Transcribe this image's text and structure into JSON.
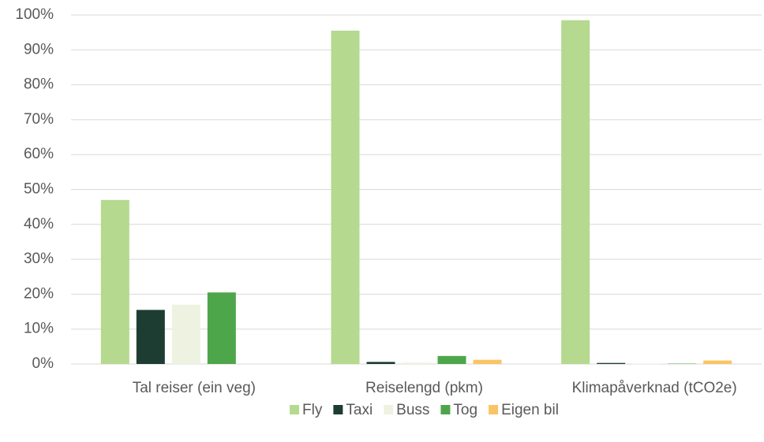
{
  "chart_data": {
    "type": "bar",
    "categories": [
      "Tal reiser (ein veg)",
      "Reiselengd (pkm)",
      "Klimapåverknad (tCO2e)"
    ],
    "series": [
      {
        "name": "Fly",
        "color": "#b5d98f",
        "values": [
          47,
          95.5,
          98.5
        ]
      },
      {
        "name": "Taxi",
        "color": "#1e3d32",
        "values": [
          15.5,
          0.6,
          0.3
        ]
      },
      {
        "name": "Buss",
        "color": "#eef2e0",
        "values": [
          17,
          0.4,
          0.1
        ]
      },
      {
        "name": "Tog",
        "color": "#4ea64a",
        "values": [
          20.5,
          2.3,
          0.1
        ]
      },
      {
        "name": "Eigen bil",
        "color": "#fbc463",
        "values": [
          0,
          1.2,
          1.0
        ]
      }
    ],
    "ylim": [
      0,
      100
    ],
    "yticks": [
      {
        "value": 0,
        "label": "0%"
      },
      {
        "value": 10,
        "label": "10%"
      },
      {
        "value": 20,
        "label": "20%"
      },
      {
        "value": 30,
        "label": "30%"
      },
      {
        "value": 40,
        "label": "40%"
      },
      {
        "value": 50,
        "label": "50%"
      },
      {
        "value": 60,
        "label": "60%"
      },
      {
        "value": 70,
        "label": "70%"
      },
      {
        "value": 80,
        "label": "80%"
      },
      {
        "value": 90,
        "label": "90%"
      },
      {
        "value": 100,
        "label": "100%"
      }
    ],
    "grid": true,
    "legend": "bottom"
  }
}
